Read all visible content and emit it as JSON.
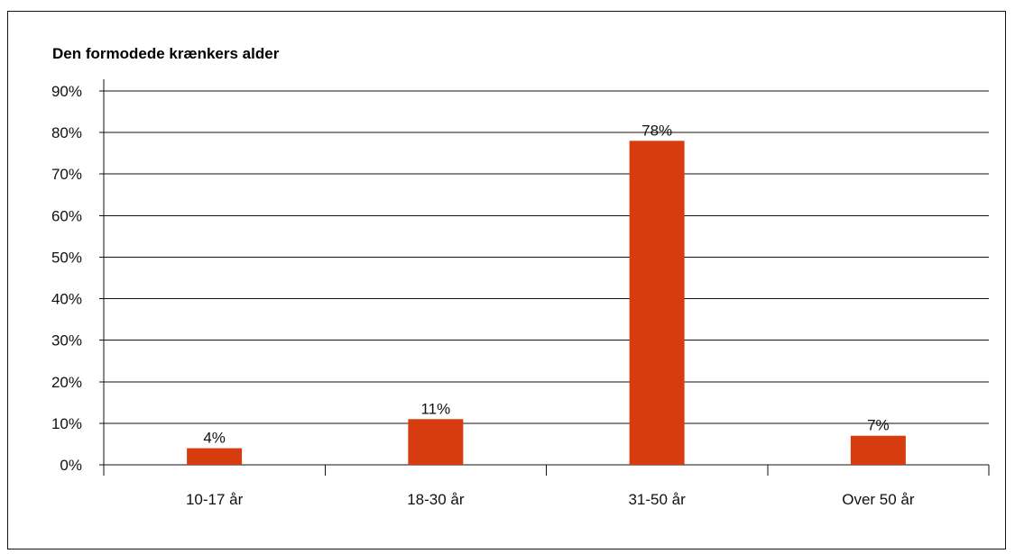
{
  "chart_data": {
    "type": "bar",
    "title": "Den formodede krænkers alder",
    "categories": [
      "10-17 år",
      "18-30 år",
      "31-50 år",
      "Over 50 år"
    ],
    "values": [
      4,
      11,
      78,
      7
    ],
    "data_labels": [
      "4%",
      "11%",
      "78%",
      "7%"
    ],
    "ylim": [
      0,
      90
    ],
    "yticks": [
      0,
      10,
      20,
      30,
      40,
      50,
      60,
      70,
      80,
      90
    ],
    "ytick_labels": [
      "0%",
      "10%",
      "20%",
      "30%",
      "40%",
      "50%",
      "60%",
      "70%",
      "80%",
      "90%"
    ],
    "xlabel": "",
    "ylabel": "",
    "grid": true,
    "legend": "none",
    "bar_color": "#d63c10",
    "grid_color": "#111111"
  }
}
